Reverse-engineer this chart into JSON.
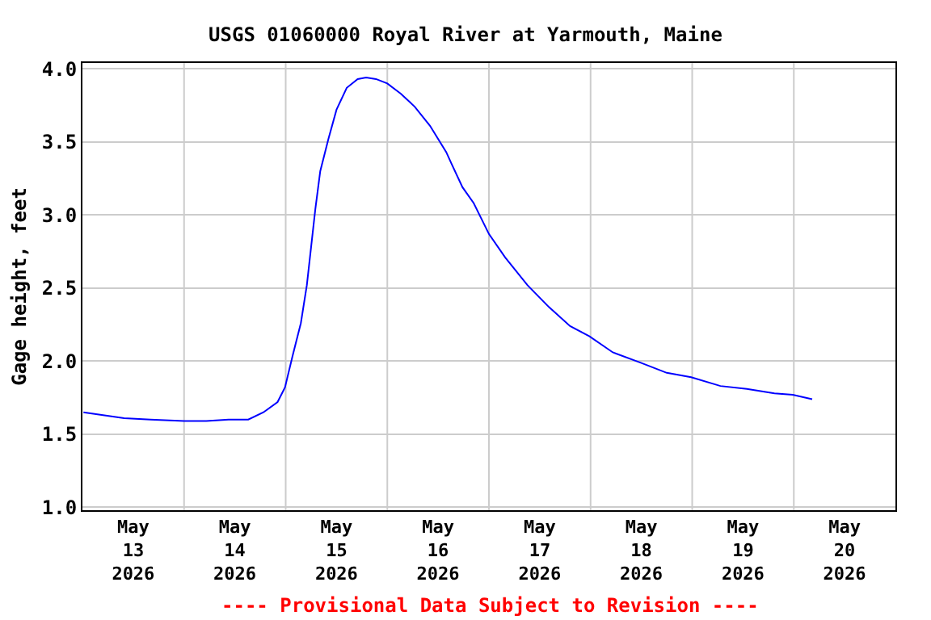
{
  "chart_data": {
    "type": "line",
    "title": "USGS 01060000 Royal River at Yarmouth, Maine",
    "ylabel": "Gage height, feet",
    "annotations": [
      "---- Provisional Data Subject to Revision ----"
    ],
    "x": [
      "2026-05-13T00:15",
      "2026-05-13T09:50",
      "2026-05-13T16:05",
      "2026-05-14T00:00",
      "2026-05-14T05:15",
      "2026-05-14T10:30",
      "2026-05-14T15:10",
      "2026-05-14T18:45",
      "2026-05-14T22:05",
      "2026-05-14T23:50",
      "2026-05-15T01:40",
      "2026-05-15T03:35",
      "2026-05-15T05:00",
      "2026-05-15T06:00",
      "2026-05-15T07:00",
      "2026-05-15T08:10",
      "2026-05-15T10:05",
      "2026-05-15T12:00",
      "2026-05-15T14:25",
      "2026-05-15T17:00",
      "2026-05-15T19:00",
      "2026-05-15T21:20",
      "2026-05-16T00:00",
      "2026-05-16T03:10",
      "2026-05-16T06:30",
      "2026-05-16T10:05",
      "2026-05-16T13:55",
      "2026-05-16T15:10",
      "2026-05-16T17:45",
      "2026-05-16T20:25",
      "2026-05-17T00:00",
      "2026-05-17T03:50",
      "2026-05-17T09:05",
      "2026-05-17T14:10",
      "2026-05-17T19:10",
      "2026-05-17T23:45",
      "2026-05-18T05:15",
      "2026-05-18T11:45",
      "2026-05-18T18:00",
      "2026-05-18T23:45",
      "2026-05-19T06:40",
      "2026-05-19T12:55",
      "2026-05-19T19:25",
      "2026-05-19T23:45",
      "2026-05-20T04:20"
    ],
    "series": [
      {
        "color": "#0000ff",
        "values": [
          1.65,
          1.61,
          1.6,
          1.59,
          1.59,
          1.6,
          1.6,
          1.65,
          1.72,
          1.82,
          2.04,
          2.26,
          2.52,
          2.78,
          3.04,
          3.3,
          3.52,
          3.72,
          3.87,
          3.93,
          3.94,
          3.93,
          3.9,
          3.83,
          3.74,
          3.61,
          3.43,
          3.35,
          3.19,
          3.08,
          2.87,
          2.71,
          2.52,
          2.37,
          2.24,
          2.17,
          2.06,
          1.99,
          1.92,
          1.89,
          1.83,
          1.81,
          1.78,
          1.77,
          1.74
        ]
      }
    ],
    "xlim": [
      "2026-05-13T00:00",
      "2026-05-21T00:00"
    ],
    "xticks": [
      {
        "value": "2026-05-13T12:00",
        "label": "May\n13\n2026"
      },
      {
        "value": "2026-05-14T12:00",
        "label": "May\n14\n2026"
      },
      {
        "value": "2026-05-15T12:00",
        "label": "May\n15\n2026"
      },
      {
        "value": "2026-05-16T12:00",
        "label": "May\n16\n2026"
      },
      {
        "value": "2026-05-17T12:00",
        "label": "May\n17\n2026"
      },
      {
        "value": "2026-05-18T12:00",
        "label": "May\n18\n2026"
      },
      {
        "value": "2026-05-19T12:00",
        "label": "May\n19\n2026"
      },
      {
        "value": "2026-05-20T12:00",
        "label": "May\n20\n2026"
      },
      {
        "value": "2026-05-14T00:00",
        "label": null
      },
      {
        "value": "2026-05-15T00:00",
        "label": null
      },
      {
        "value": "2026-05-16T00:00",
        "label": null
      },
      {
        "value": "2026-05-17T00:00",
        "label": null
      },
      {
        "value": "2026-05-18T00:00",
        "label": null
      },
      {
        "value": "2026-05-19T00:00",
        "label": null
      },
      {
        "value": "2026-05-20T00:00",
        "label": null
      }
    ],
    "ylim": [
      0.98,
      4.04
    ],
    "yticks": [
      {
        "value": 1,
        "label": "1.0"
      },
      {
        "value": 1.5,
        "label": "1.5"
      },
      {
        "value": 2,
        "label": "2.0"
      },
      {
        "value": 2.5,
        "label": "2.5"
      },
      {
        "value": 3,
        "label": "3.0"
      },
      {
        "value": 3.5,
        "label": "3.5"
      },
      {
        "value": 4,
        "label": "4.0"
      }
    ],
    "grid": true
  }
}
